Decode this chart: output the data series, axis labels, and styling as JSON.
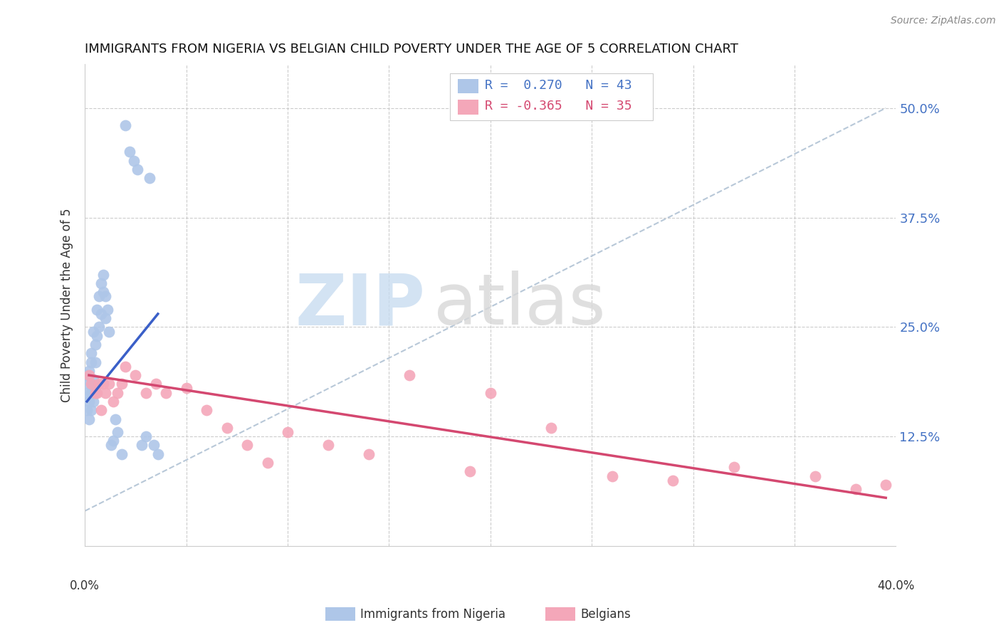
{
  "title": "IMMIGRANTS FROM NIGERIA VS BELGIAN CHILD POVERTY UNDER THE AGE OF 5 CORRELATION CHART",
  "source": "Source: ZipAtlas.com",
  "ylabel": "Child Poverty Under the Age of 5",
  "xlim": [
    0.0,
    0.4
  ],
  "ylim": [
    0.0,
    0.55
  ],
  "color_blue": "#aec6e8",
  "color_pink": "#f4a7b9",
  "line_blue": "#3a5fc8",
  "line_pink": "#d44870",
  "line_dashed_color": "#b8c8d8",
  "nigeria_x": [
    0.001,
    0.001,
    0.001,
    0.002,
    0.002,
    0.002,
    0.002,
    0.003,
    0.003,
    0.003,
    0.003,
    0.004,
    0.004,
    0.004,
    0.005,
    0.005,
    0.005,
    0.006,
    0.006,
    0.007,
    0.007,
    0.008,
    0.008,
    0.009,
    0.009,
    0.01,
    0.01,
    0.011,
    0.012,
    0.013,
    0.014,
    0.015,
    0.016,
    0.018,
    0.02,
    0.022,
    0.024,
    0.026,
    0.028,
    0.03,
    0.032,
    0.034,
    0.036
  ],
  "nigeria_y": [
    0.195,
    0.175,
    0.155,
    0.2,
    0.165,
    0.145,
    0.185,
    0.21,
    0.175,
    0.155,
    0.22,
    0.245,
    0.19,
    0.165,
    0.23,
    0.21,
    0.18,
    0.27,
    0.24,
    0.285,
    0.25,
    0.3,
    0.265,
    0.29,
    0.31,
    0.285,
    0.26,
    0.27,
    0.245,
    0.115,
    0.12,
    0.145,
    0.13,
    0.105,
    0.48,
    0.45,
    0.44,
    0.43,
    0.115,
    0.125,
    0.42,
    0.115,
    0.105
  ],
  "belgian_x": [
    0.002,
    0.003,
    0.005,
    0.006,
    0.007,
    0.008,
    0.009,
    0.01,
    0.012,
    0.014,
    0.016,
    0.018,
    0.02,
    0.025,
    0.03,
    0.035,
    0.04,
    0.05,
    0.06,
    0.07,
    0.08,
    0.09,
    0.1,
    0.12,
    0.14,
    0.16,
    0.19,
    0.2,
    0.23,
    0.26,
    0.29,
    0.32,
    0.36,
    0.38,
    0.395
  ],
  "belgian_y": [
    0.195,
    0.185,
    0.175,
    0.175,
    0.185,
    0.155,
    0.185,
    0.175,
    0.185,
    0.165,
    0.175,
    0.185,
    0.205,
    0.195,
    0.175,
    0.185,
    0.175,
    0.18,
    0.155,
    0.135,
    0.115,
    0.095,
    0.13,
    0.115,
    0.105,
    0.195,
    0.085,
    0.175,
    0.135,
    0.08,
    0.075,
    0.09,
    0.08,
    0.065,
    0.07
  ],
  "blue_line_x": [
    0.001,
    0.036
  ],
  "blue_line_y": [
    0.165,
    0.265
  ],
  "pink_line_x": [
    0.002,
    0.395
  ],
  "pink_line_y": [
    0.195,
    0.055
  ],
  "dash_line_x": [
    0.0,
    0.395
  ],
  "dash_line_y": [
    0.04,
    0.5
  ]
}
